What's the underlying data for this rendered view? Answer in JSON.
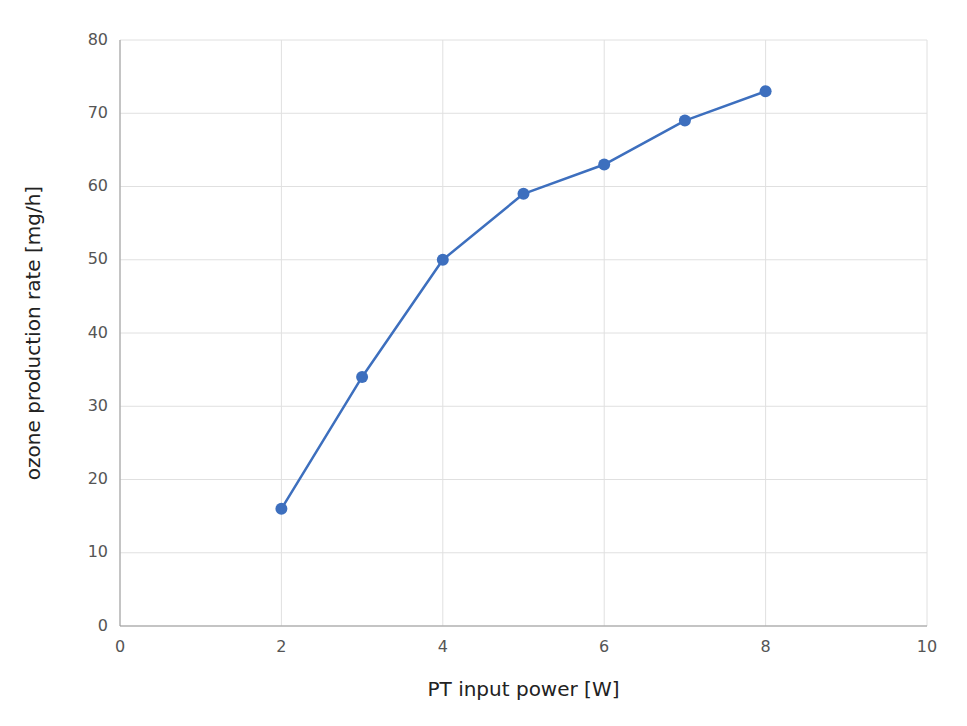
{
  "chart_data": {
    "type": "line",
    "x": [
      2,
      3,
      4,
      5,
      6,
      7,
      8
    ],
    "values": [
      16,
      34,
      50,
      59,
      63,
      69,
      73
    ],
    "color": "#3d6fbe",
    "marker": "circle",
    "xlabel": "PT input power [W]",
    "ylabel": "ozone production rate [mg/h]",
    "xlim": [
      0,
      10
    ],
    "ylim": [
      0,
      80
    ],
    "xticks": [
      0,
      2,
      4,
      6,
      8,
      10
    ],
    "yticks": [
      0,
      10,
      20,
      30,
      40,
      50,
      60,
      70,
      80
    ],
    "grid": true
  }
}
